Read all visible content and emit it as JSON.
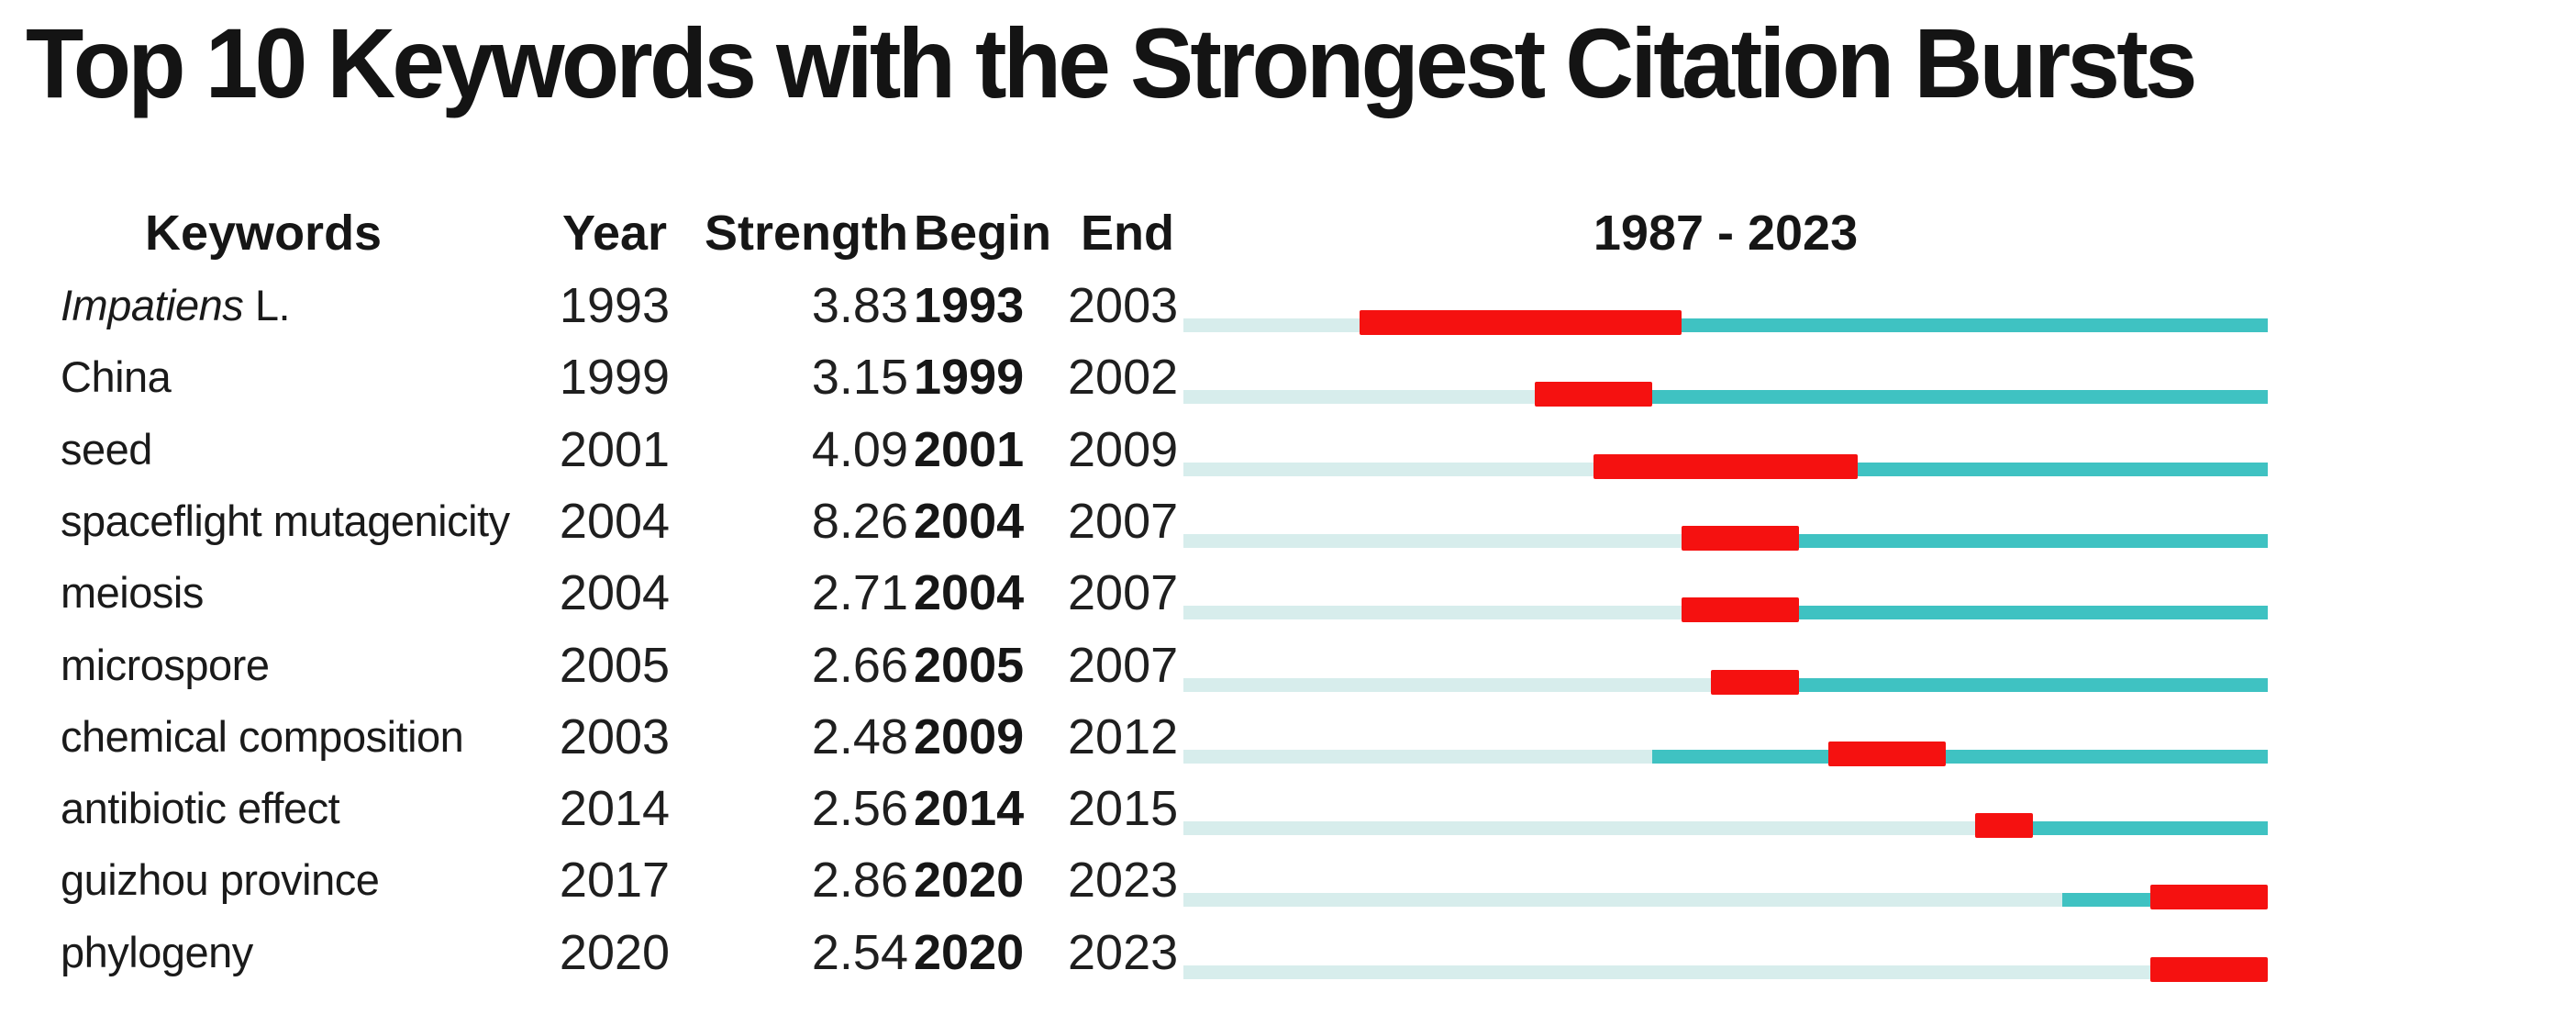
{
  "chart_data": {
    "type": "table",
    "title": "Top 10 Keywords with the Strongest Citation Bursts",
    "columns": [
      "Keywords",
      "Year",
      "Strength",
      "Begin",
      "End",
      "1987 - 2023"
    ],
    "timeline": {
      "axis_start": 1987,
      "axis_end": 2023
    },
    "colors": {
      "pre_appearance_bar": "#d7edec",
      "active_bar": "#3fc2c2",
      "burst_bar": "#f51110",
      "text": "#1b1b1b"
    },
    "rows": [
      {
        "keyword": "Impatiens L.",
        "italic_segment": "Impatiens",
        "plain_segment": " L.",
        "year": 1993,
        "strength": 3.83,
        "begin": 1993,
        "end": 2003
      },
      {
        "keyword": "China",
        "year": 1999,
        "strength": 3.15,
        "begin": 1999,
        "end": 2002
      },
      {
        "keyword": "seed",
        "year": 2001,
        "strength": 4.09,
        "begin": 2001,
        "end": 2009
      },
      {
        "keyword": "spaceflight mutagenicity",
        "year": 2004,
        "strength": 8.26,
        "begin": 2004,
        "end": 2007
      },
      {
        "keyword": "meiosis",
        "year": 2004,
        "strength": 2.71,
        "begin": 2004,
        "end": 2007
      },
      {
        "keyword": "microspore",
        "year": 2005,
        "strength": 2.66,
        "begin": 2005,
        "end": 2007
      },
      {
        "keyword": "chemical composition",
        "year": 2003,
        "strength": 2.48,
        "begin": 2009,
        "end": 2012
      },
      {
        "keyword": "antibiotic effect",
        "year": 2014,
        "strength": 2.56,
        "begin": 2014,
        "end": 2015
      },
      {
        "keyword": "guizhou province",
        "year": 2017,
        "strength": 2.86,
        "begin": 2020,
        "end": 2023
      },
      {
        "keyword": "phylogeny",
        "year": 2020,
        "strength": 2.54,
        "begin": 2020,
        "end": 2023
      }
    ]
  }
}
